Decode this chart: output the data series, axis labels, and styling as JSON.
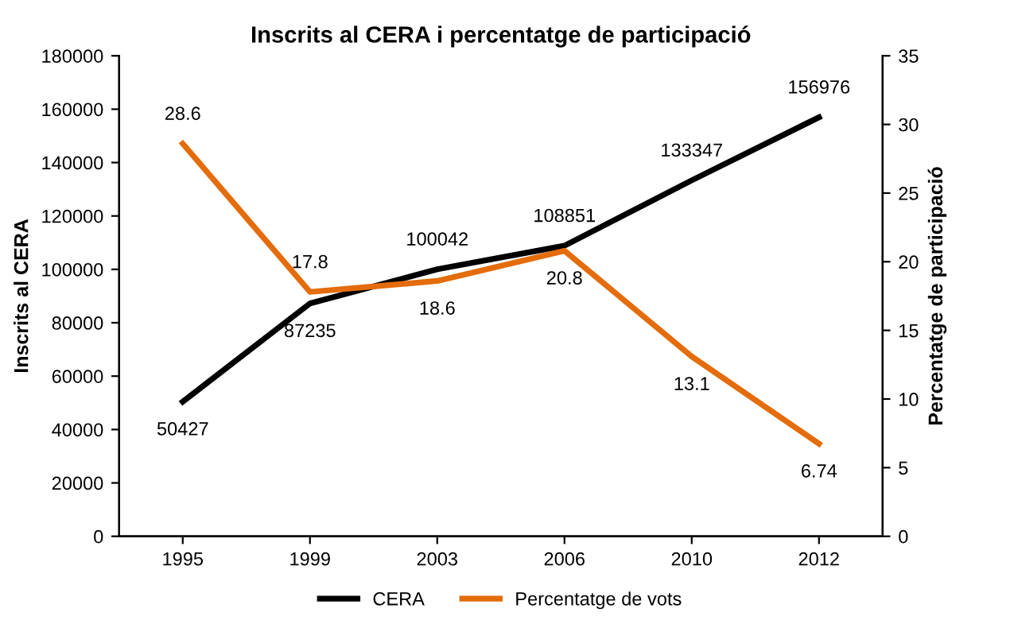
{
  "chart_data": {
    "type": "line",
    "title": "Inscrits al CERA i percentatge de participació",
    "ylabel": "Inscrits al CERA",
    "y2label": "Percentatge de participació",
    "categories": [
      "1995",
      "1999",
      "2003",
      "2006",
      "2010",
      "2012"
    ],
    "series": [
      {
        "name": "CERA",
        "color": "#000000",
        "values": [
          50427,
          87235,
          100042,
          108851,
          133347,
          156976
        ]
      },
      {
        "name": "Percentatge de vots",
        "color": "#e46c0a",
        "axis": "y2",
        "values": [
          28.6,
          17.8,
          18.6,
          20.8,
          13.1,
          6.74
        ]
      }
    ],
    "ylim": [
      0,
      180000
    ],
    "yticks": [
      0,
      20000,
      40000,
      60000,
      80000,
      100000,
      120000,
      140000,
      160000,
      180000
    ],
    "y2lim": [
      0,
      35
    ],
    "y2ticks": [
      0,
      5,
      10,
      15,
      20,
      25,
      30,
      35
    ],
    "data_labels": true,
    "legend": "bottom",
    "grid": false,
    "marker": "none",
    "line_style": "solid"
  }
}
